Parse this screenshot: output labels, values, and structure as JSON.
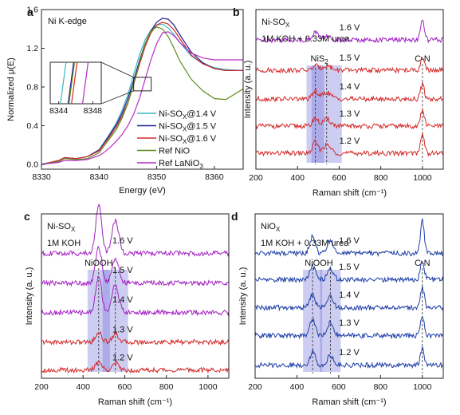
{
  "chart_data": [
    {
      "panel": "a",
      "type": "line",
      "title": "Ni K-edge",
      "xlabel": "Energy (eV)",
      "ylabel": "Normalized μ(E)",
      "xlim": [
        8330,
        8365
      ],
      "ylim": [
        -0.05,
        1.6
      ],
      "xticks": [
        "8330",
        "8340",
        "8350",
        "8360"
      ],
      "yticks": [
        "0.0",
        "0.4",
        "0.8",
        "1.2",
        "1.6"
      ],
      "legend_position": "bottom-right",
      "inset": {
        "xlim": [
          8343,
          8349
        ],
        "xticks": [
          "8344",
          "8348"
        ]
      },
      "series": [
        {
          "name": "Ni-SOX@1.4 V",
          "name_main": "Ni-SO",
          "name_sub": "X",
          "name_tail": "@1.4 V",
          "color": "#38b8c2",
          "x": [
            8330,
            8333,
            8334,
            8336,
            8338,
            8340,
            8341,
            8342,
            8343,
            8344,
            8345,
            8346,
            8347,
            8348,
            8349,
            8350,
            8351,
            8352,
            8353,
            8354,
            8356,
            8358,
            8360,
            8362,
            8365
          ],
          "y": [
            0.0,
            0.04,
            0.07,
            0.06,
            0.08,
            0.15,
            0.24,
            0.33,
            0.43,
            0.56,
            0.72,
            0.93,
            1.13,
            1.29,
            1.39,
            1.44,
            1.45,
            1.41,
            1.34,
            1.26,
            1.12,
            1.04,
            1.0,
            0.98,
            0.97
          ]
        },
        {
          "name": "Ni-SOX@1.5 V",
          "name_main": "Ni-SO",
          "name_sub": "X",
          "name_tail": "@1.5 V",
          "color": "#1f1f8f",
          "x": [
            8330,
            8333,
            8334,
            8336,
            8338,
            8340,
            8341,
            8342,
            8343,
            8344,
            8345,
            8346,
            8347,
            8348,
            8349,
            8350,
            8351,
            8352,
            8353,
            8354,
            8356,
            8358,
            8360,
            8362,
            8365
          ],
          "y": [
            0.0,
            0.04,
            0.07,
            0.06,
            0.08,
            0.15,
            0.23,
            0.32,
            0.41,
            0.53,
            0.68,
            0.87,
            1.07,
            1.25,
            1.38,
            1.47,
            1.51,
            1.5,
            1.44,
            1.34,
            1.16,
            1.05,
            0.99,
            0.97,
            0.97
          ]
        },
        {
          "name": "Ni-SOX@1.6 V",
          "name_main": "Ni-SO",
          "name_sub": "X",
          "name_tail": "@1.6 V",
          "color": "#d42a2a",
          "x": [
            8330,
            8333,
            8334,
            8336,
            8338,
            8340,
            8341,
            8342,
            8343,
            8344,
            8345,
            8346,
            8347,
            8348,
            8349,
            8350,
            8351,
            8352,
            8353,
            8354,
            8356,
            8358,
            8360,
            8362,
            8365
          ],
          "y": [
            0.0,
            0.04,
            0.07,
            0.06,
            0.08,
            0.14,
            0.22,
            0.3,
            0.39,
            0.5,
            0.64,
            0.83,
            1.03,
            1.22,
            1.36,
            1.44,
            1.47,
            1.45,
            1.39,
            1.3,
            1.13,
            1.04,
            0.99,
            0.97,
            0.97
          ]
        },
        {
          "name": "Ref NiO",
          "name_main": "Ref NiO",
          "name_sub": "",
          "name_tail": "",
          "color": "#5e8a1c",
          "x": [
            8330,
            8333,
            8334,
            8336,
            8338,
            8340,
            8341,
            8342,
            8343,
            8344,
            8345,
            8346,
            8347,
            8348,
            8349,
            8350,
            8351,
            8352,
            8353,
            8354,
            8356,
            8358,
            8360,
            8362,
            8365
          ],
          "y": [
            0.0,
            0.03,
            0.06,
            0.05,
            0.06,
            0.12,
            0.2,
            0.28,
            0.36,
            0.48,
            0.63,
            0.83,
            1.05,
            1.25,
            1.38,
            1.42,
            1.4,
            1.32,
            1.2,
            1.07,
            0.88,
            0.76,
            0.68,
            0.67,
            0.78
          ]
        },
        {
          "name": "Ref LaNiO3",
          "name_main": "Ref LaNiO",
          "name_sub": "3",
          "name_tail": "",
          "color": "#b62fc4",
          "x": [
            8330,
            8333,
            8334,
            8336,
            8338,
            8340,
            8341,
            8342,
            8343,
            8344,
            8345,
            8346,
            8347,
            8348,
            8349,
            8350,
            8351,
            8352,
            8353,
            8354,
            8356,
            8358,
            8360,
            8362,
            8365
          ],
          "y": [
            0.0,
            0.02,
            0.04,
            0.04,
            0.05,
            0.09,
            0.13,
            0.18,
            0.24,
            0.31,
            0.4,
            0.52,
            0.68,
            0.88,
            1.08,
            1.25,
            1.36,
            1.37,
            1.33,
            1.26,
            1.15,
            1.1,
            1.08,
            1.08,
            1.08
          ]
        }
      ]
    },
    {
      "panel": "b",
      "type": "line",
      "title_main": "Ni-SO",
      "title_sub": "X",
      "subtitle": "1M KOH + 0.33M urea",
      "xlabel": "Raman shift (cm⁻¹)",
      "ylabel": "Intensity (a. u.)",
      "xlim": [
        200,
        1100
      ],
      "xticks": [
        "200",
        "400",
        "600",
        "800",
        "1000"
      ],
      "peak_labels": [
        {
          "text": "NiS",
          "sub": "2",
          "x": 505
        },
        {
          "text": "C-N",
          "sub": "",
          "x": 1000
        }
      ],
      "bands": [
        {
          "x": 485,
          "w": 22
        },
        {
          "x": 540,
          "w": 38
        }
      ],
      "dashes": [
        485,
        540,
        1000
      ],
      "series": [
        {
          "name": "1.2 V",
          "color": "#d42a2a",
          "offset": 0.1,
          "peaks": [
            [
              485,
              0.07,
              12
            ],
            [
              540,
              0.05,
              20
            ],
            [
              1000,
              0.12,
              9
            ]
          ]
        },
        {
          "name": "1.3 V",
          "color": "#d42a2a",
          "offset": 0.27,
          "peaks": [
            [
              485,
              0.05,
              12
            ],
            [
              540,
              0.04,
              20
            ],
            [
              1000,
              0.1,
              9
            ]
          ]
        },
        {
          "name": "1.4 V",
          "color": "#d42a2a",
          "offset": 0.44,
          "peaks": [
            [
              485,
              0.05,
              12
            ],
            [
              540,
              0.04,
              20
            ],
            [
              1000,
              0.09,
              9
            ]
          ]
        },
        {
          "name": "1.5 V",
          "color": "#d42a2a",
          "offset": 0.62,
          "peaks": [
            [
              485,
              0.03,
              12
            ],
            [
              540,
              0.03,
              20
            ],
            [
              1000,
              0.08,
              9
            ]
          ]
        },
        {
          "name": "1.6 V",
          "color": "#a322c2",
          "offset": 0.81,
          "peaks": [
            [
              485,
              0.05,
              12
            ],
            [
              540,
              0.02,
              20
            ],
            [
              1000,
              0.12,
              9
            ]
          ]
        }
      ]
    },
    {
      "panel": "c",
      "type": "line",
      "title_main": "Ni-SO",
      "title_sub": "X",
      "subtitle": "1M KOH",
      "xlabel": "Raman shift (cm⁻¹)",
      "ylabel": "Intensity (a. u.)",
      "xlim": [
        200,
        1100
      ],
      "xticks": [
        "200",
        "400",
        "600",
        "800",
        "1000"
      ],
      "peak_labels": [
        {
          "text": "NiOOH",
          "sub": "",
          "x": 475
        }
      ],
      "bands": [
        {
          "x": 475,
          "w": 28
        },
        {
          "x": 555,
          "w": 32
        }
      ],
      "dashes": [
        475,
        555
      ],
      "series": [
        {
          "name": "1.2 V",
          "color": "#d42a2a",
          "offset": 0.05,
          "peaks": [
            [
              475,
              0.05,
              14
            ],
            [
              555,
              0.04,
              16
            ]
          ]
        },
        {
          "name": "1.3 V",
          "color": "#d42a2a",
          "offset": 0.22,
          "peaks": [
            [
              475,
              0.06,
              14
            ],
            [
              555,
              0.05,
              16
            ]
          ]
        },
        {
          "name": "1.4 V",
          "color": "#a322c2",
          "offset": 0.4,
          "peaks": [
            [
              475,
              0.22,
              14
            ],
            [
              555,
              0.17,
              16
            ]
          ]
        },
        {
          "name": "1.5 V",
          "color": "#a322c2",
          "offset": 0.58,
          "peaks": [
            [
              475,
              0.22,
              14
            ],
            [
              555,
              0.15,
              16
            ]
          ]
        },
        {
          "name": "1.6 V",
          "color": "#a322c2",
          "offset": 0.76,
          "peaks": [
            [
              475,
              0.3,
              14
            ],
            [
              555,
              0.2,
              16
            ]
          ]
        }
      ]
    },
    {
      "panel": "d",
      "type": "line",
      "title_main": "NiO",
      "title_sub": "X",
      "subtitle": "1M KOH + 0.33M urea",
      "xlabel": "Raman shift (cm⁻¹)",
      "ylabel": "Intensity (a. u.)",
      "xlim": [
        200,
        1100
      ],
      "xticks": [
        "200",
        "400",
        "600",
        "800",
        "1000"
      ],
      "peak_labels": [
        {
          "text": "NiOOH",
          "sub": "",
          "x": 505
        },
        {
          "text": "C-N",
          "sub": "",
          "x": 1000
        }
      ],
      "bands": [
        {
          "x": 475,
          "w": 24
        },
        {
          "x": 560,
          "w": 26
        }
      ],
      "dashes": [
        475,
        560,
        1000
      ],
      "series": [
        {
          "name": "1.2 V",
          "color": "#1f3fa8",
          "offset": 0.08,
          "peaks": [
            [
              475,
              0.08,
              13
            ],
            [
              560,
              0.06,
              14
            ],
            [
              1000,
              0.1,
              9
            ]
          ]
        },
        {
          "name": "1.3 V",
          "color": "#1f3fa8",
          "offset": 0.26,
          "peaks": [
            [
              475,
              0.1,
              13
            ],
            [
              560,
              0.08,
              14
            ],
            [
              1000,
              0.12,
              9
            ]
          ]
        },
        {
          "name": "1.4 V",
          "color": "#1f3fa8",
          "offset": 0.43,
          "peaks": [
            [
              475,
              0.08,
              13
            ],
            [
              560,
              0.07,
              14
            ],
            [
              1000,
              0.12,
              9
            ]
          ]
        },
        {
          "name": "1.5 V",
          "color": "#1f3fa8",
          "offset": 0.6,
          "peaks": [
            [
              475,
              0.08,
              13
            ],
            [
              560,
              0.07,
              14
            ],
            [
              1000,
              0.12,
              9
            ]
          ]
        },
        {
          "name": "1.6 V",
          "color": "#1f3fa8",
          "offset": 0.76,
          "peaks": [
            [
              475,
              0.1,
              13
            ],
            [
              560,
              0.08,
              14
            ],
            [
              1000,
              0.2,
              9
            ]
          ]
        }
      ]
    }
  ]
}
